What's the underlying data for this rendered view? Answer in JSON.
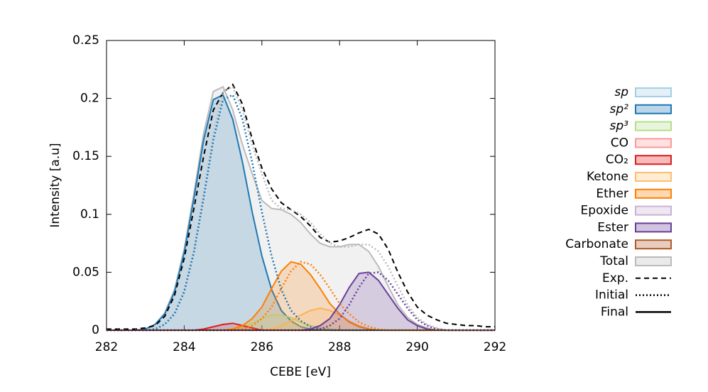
{
  "chart_data": {
    "type": "line",
    "xlabel": "CEBE [eV]",
    "ylabel": "Intensity [a.u]",
    "xlim": [
      282,
      292
    ],
    "ylim": [
      0,
      0.25
    ],
    "xticks": [
      282,
      284,
      286,
      288,
      290,
      292
    ],
    "yticks": [
      0,
      0.05,
      0.1,
      0.15,
      0.2,
      0.25
    ],
    "grid": false,
    "legend": "right",
    "x": [
      282,
      282.25,
      282.5,
      282.75,
      283,
      283.25,
      283.5,
      283.75,
      284,
      284.25,
      284.5,
      284.75,
      285,
      285.25,
      285.5,
      285.75,
      286,
      286.25,
      286.5,
      286.75,
      287,
      287.25,
      287.5,
      287.75,
      288,
      288.25,
      288.5,
      288.75,
      289,
      289.25,
      289.5,
      289.75,
      290,
      290.25,
      290.5,
      290.75,
      291,
      291.25,
      291.5,
      291.75,
      292
    ],
    "series": [
      {
        "name": "sp",
        "italic": true,
        "color": "#a6cee3",
        "values": [
          0,
          0,
          0,
          0,
          0,
          0,
          0,
          0,
          0,
          0,
          0,
          0,
          0,
          0,
          0,
          0,
          0,
          0,
          0,
          0,
          0,
          0,
          0,
          0,
          0,
          0,
          0,
          0,
          0,
          0,
          0,
          0,
          0,
          0,
          0,
          0,
          0,
          0,
          0,
          0,
          0
        ]
      },
      {
        "name": "sp²",
        "italic": true,
        "color": "#1f78b4",
        "values": [
          0,
          0,
          0,
          0,
          0.001,
          0.005,
          0.014,
          0.033,
          0.067,
          0.114,
          0.164,
          0.199,
          0.203,
          0.182,
          0.145,
          0.102,
          0.064,
          0.035,
          0.017,
          0.008,
          0.003,
          0.001,
          0,
          0,
          0,
          0,
          0,
          0,
          0,
          0,
          0,
          0,
          0,
          0,
          0,
          0,
          0,
          0,
          0,
          0,
          0
        ],
        "initial": [
          0,
          0,
          0,
          0,
          0,
          0.001,
          0.005,
          0.014,
          0.033,
          0.067,
          0.114,
          0.164,
          0.199,
          0.203,
          0.182,
          0.145,
          0.102,
          0.064,
          0.035,
          0.017,
          0.008,
          0.003,
          0.001,
          0,
          0,
          0,
          0,
          0,
          0,
          0,
          0,
          0,
          0,
          0,
          0,
          0,
          0,
          0,
          0,
          0,
          0
        ]
      },
      {
        "name": "sp³",
        "italic": true,
        "color": "#b2df8a",
        "values": [
          0,
          0,
          0,
          0,
          0,
          0,
          0,
          0,
          0,
          0,
          0,
          0,
          0,
          0.001,
          0.003,
          0.006,
          0.01,
          0.013,
          0.013,
          0.011,
          0.007,
          0.004,
          0.002,
          0.001,
          0,
          0,
          0,
          0,
          0,
          0,
          0,
          0,
          0,
          0,
          0,
          0,
          0,
          0,
          0,
          0,
          0
        ]
      },
      {
        "name": "CO",
        "color": "#fb9a99",
        "values": [
          0,
          0,
          0,
          0,
          0,
          0,
          0,
          0,
          0,
          0,
          0,
          0,
          0,
          0,
          0,
          0,
          0,
          0,
          0,
          0,
          0,
          0,
          0,
          0,
          0,
          0,
          0,
          0,
          0,
          0,
          0,
          0,
          0,
          0,
          0,
          0,
          0,
          0,
          0,
          0,
          0
        ]
      },
      {
        "name": "CO₂",
        "color": "#e31a1c",
        "values": [
          0,
          0,
          0,
          0,
          0,
          0,
          0,
          0,
          0,
          0,
          0.001,
          0.003,
          0.005,
          0.006,
          0.004,
          0.002,
          0,
          0,
          0,
          0,
          0,
          0,
          0,
          0,
          0,
          0,
          0,
          0,
          0,
          0,
          0,
          0,
          0,
          0,
          0,
          0,
          0,
          0,
          0,
          0,
          0
        ]
      },
      {
        "name": "Ketone",
        "color": "#fdbf6f",
        "values": [
          0,
          0,
          0,
          0,
          0,
          0,
          0,
          0,
          0,
          0,
          0,
          0,
          0,
          0,
          0,
          0,
          0,
          0.001,
          0.004,
          0.008,
          0.013,
          0.017,
          0.019,
          0.017,
          0.013,
          0.008,
          0.004,
          0.001,
          0,
          0,
          0,
          0,
          0,
          0,
          0,
          0,
          0,
          0,
          0,
          0,
          0
        ]
      },
      {
        "name": "Ether",
        "color": "#ff7f00",
        "values": [
          0,
          0,
          0,
          0,
          0,
          0,
          0,
          0,
          0,
          0,
          0,
          0,
          0,
          0.001,
          0.004,
          0.01,
          0.02,
          0.036,
          0.051,
          0.059,
          0.057,
          0.048,
          0.036,
          0.023,
          0.014,
          0.007,
          0.003,
          0.001,
          0,
          0,
          0,
          0,
          0,
          0,
          0,
          0,
          0,
          0,
          0,
          0,
          0
        ],
        "initial": [
          0,
          0,
          0,
          0,
          0,
          0,
          0,
          0,
          0,
          0,
          0,
          0,
          0,
          0,
          0.001,
          0.004,
          0.01,
          0.02,
          0.036,
          0.051,
          0.059,
          0.057,
          0.048,
          0.036,
          0.023,
          0.014,
          0.007,
          0.003,
          0.001,
          0,
          0,
          0,
          0,
          0,
          0,
          0,
          0,
          0,
          0,
          0,
          0
        ]
      },
      {
        "name": "Epoxide",
        "color": "#cab2d6",
        "values": [
          0,
          0,
          0,
          0,
          0,
          0,
          0,
          0,
          0,
          0,
          0,
          0,
          0,
          0,
          0,
          0,
          0,
          0,
          0,
          0,
          0,
          0,
          0,
          0,
          0,
          0,
          0,
          0,
          0,
          0,
          0,
          0,
          0,
          0,
          0,
          0,
          0,
          0,
          0,
          0,
          0
        ]
      },
      {
        "name": "Ester",
        "color": "#6a3d9a",
        "values": [
          0,
          0,
          0,
          0,
          0,
          0,
          0,
          0,
          0,
          0,
          0,
          0,
          0,
          0,
          0,
          0,
          0,
          0,
          0,
          0,
          0,
          0.001,
          0.004,
          0.01,
          0.022,
          0.037,
          0.049,
          0.05,
          0.043,
          0.031,
          0.019,
          0.009,
          0.004,
          0.001,
          0,
          0,
          0,
          0,
          0,
          0,
          0
        ],
        "initial": [
          0,
          0,
          0,
          0,
          0,
          0,
          0,
          0,
          0,
          0,
          0,
          0,
          0,
          0,
          0,
          0,
          0,
          0,
          0,
          0,
          0,
          0,
          0.001,
          0.004,
          0.01,
          0.022,
          0.037,
          0.049,
          0.05,
          0.043,
          0.031,
          0.019,
          0.009,
          0.004,
          0.001,
          0,
          0,
          0,
          0,
          0,
          0
        ]
      },
      {
        "name": "Carbonate",
        "color": "#b15928",
        "values": [
          0,
          0,
          0,
          0,
          0,
          0,
          0,
          0,
          0,
          0,
          0,
          0,
          0,
          0,
          0,
          0,
          0,
          0,
          0,
          0,
          0,
          0,
          0,
          0,
          0,
          0,
          0,
          0,
          0,
          0,
          0,
          0,
          0,
          0,
          0,
          0,
          0,
          0,
          0,
          0,
          0
        ]
      },
      {
        "name": "Total",
        "color": "#bbbbbb",
        "values": [
          0,
          0,
          0,
          0,
          0.001,
          0.005,
          0.015,
          0.035,
          0.07,
          0.118,
          0.17,
          0.206,
          0.21,
          0.19,
          0.16,
          0.135,
          0.112,
          0.105,
          0.104,
          0.1,
          0.093,
          0.083,
          0.075,
          0.072,
          0.072,
          0.074,
          0.074,
          0.068,
          0.055,
          0.038,
          0.022,
          0.011,
          0.005,
          0.002,
          0,
          0,
          0,
          0,
          0,
          0,
          0
        ],
        "initial": [
          0,
          0,
          0,
          0,
          0,
          0.001,
          0.005,
          0.015,
          0.035,
          0.07,
          0.118,
          0.17,
          0.206,
          0.21,
          0.19,
          0.16,
          0.135,
          0.112,
          0.105,
          0.104,
          0.1,
          0.093,
          0.083,
          0.075,
          0.072,
          0.072,
          0.074,
          0.074,
          0.068,
          0.055,
          0.038,
          0.022,
          0.011,
          0.005,
          0.002,
          0,
          0,
          0,
          0,
          0,
          0
        ]
      }
    ],
    "experiment": {
      "name": "Exp.",
      "color": "#000000",
      "dash": "dashed",
      "values": [
        0.001,
        0.001,
        0.001,
        0.001,
        0.002,
        0.004,
        0.012,
        0.03,
        0.062,
        0.105,
        0.15,
        0.19,
        0.205,
        0.212,
        0.195,
        0.165,
        0.14,
        0.122,
        0.11,
        0.104,
        0.098,
        0.09,
        0.08,
        0.076,
        0.077,
        0.08,
        0.084,
        0.087,
        0.083,
        0.07,
        0.05,
        0.033,
        0.02,
        0.013,
        0.009,
        0.006,
        0.005,
        0.004,
        0.004,
        0.003,
        0.003
      ]
    },
    "line_styles": [
      {
        "name": "Initial",
        "dash": "dotted"
      },
      {
        "name": "Final",
        "dash": "solid"
      }
    ]
  }
}
